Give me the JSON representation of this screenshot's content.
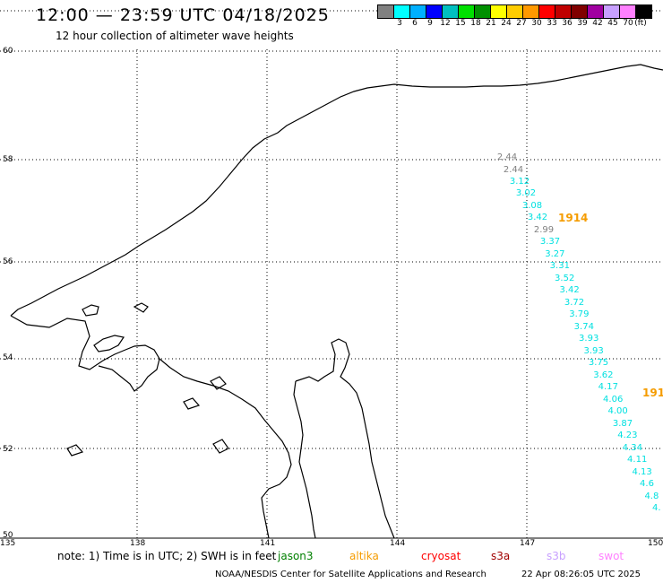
{
  "title": "12:00 — 23:59 UTC 04/18/2025",
  "subtitle": "12 hour collection of altimeter wave heights",
  "scale": {
    "unit": "(ft)",
    "colors": [
      "#808080",
      "#00ffff",
      "#00b0ff",
      "#0000ff",
      "#00c0c0",
      "#00e000",
      "#009000",
      "#ffff00",
      "#ffcc00",
      "#ff9900",
      "#ff0000",
      "#c00000",
      "#800000",
      "#a000a0",
      "#c8a0ff",
      "#ff80ff",
      "#000000"
    ],
    "labels": [
      "",
      "3",
      "6",
      "9",
      "12",
      "15",
      "18",
      "21",
      "24",
      "27",
      "30",
      "33",
      "36",
      "39",
      "42",
      "45",
      "70"
    ]
  },
  "axes": {
    "lat_labels": [
      "60",
      "58",
      "56",
      "54",
      "52",
      "50"
    ],
    "lon_labels": [
      "135",
      "138",
      "141",
      "144",
      "147",
      "150"
    ]
  },
  "wave_labels": {
    "gray": [
      "2.44",
      "2.44",
      "2.99"
    ],
    "cyan": [
      "3.12",
      "3.02",
      "3.08",
      "3.42",
      "3.37",
      "3.27",
      "3.31",
      "3.52",
      "3.42",
      "3.72",
      "3.79",
      "3.74",
      "3.93",
      "3.93",
      "3.75",
      "3.62",
      "4.17",
      "4.06",
      "4.00",
      "3.87",
      "4.23",
      "4.34",
      "4.11",
      "4.13",
      "4.6",
      "4.8",
      "4."
    ]
  },
  "passes": [
    "1914",
    "191"
  ],
  "colors": {
    "gray": "#808080",
    "cyan": "#00e0e0",
    "pass": "#f59c00"
  },
  "note": "note:  1) Time is in UTC;  2) SWH is in feet",
  "satellites": [
    {
      "name": "jason3",
      "color": "#008000"
    },
    {
      "name": "altika",
      "color": "#f59c00"
    },
    {
      "name": "cryosat",
      "color": "#ff0000"
    },
    {
      "name": "s3a",
      "color": "#a00000"
    },
    {
      "name": "s3b",
      "color": "#c8a0ff"
    },
    {
      "name": "swot",
      "color": "#ff80ff"
    }
  ],
  "footer": "NOAA/NESDIS Center for Satellite Applications and Research",
  "footer_time": "22 Apr 08:26:05 UTC 2025"
}
